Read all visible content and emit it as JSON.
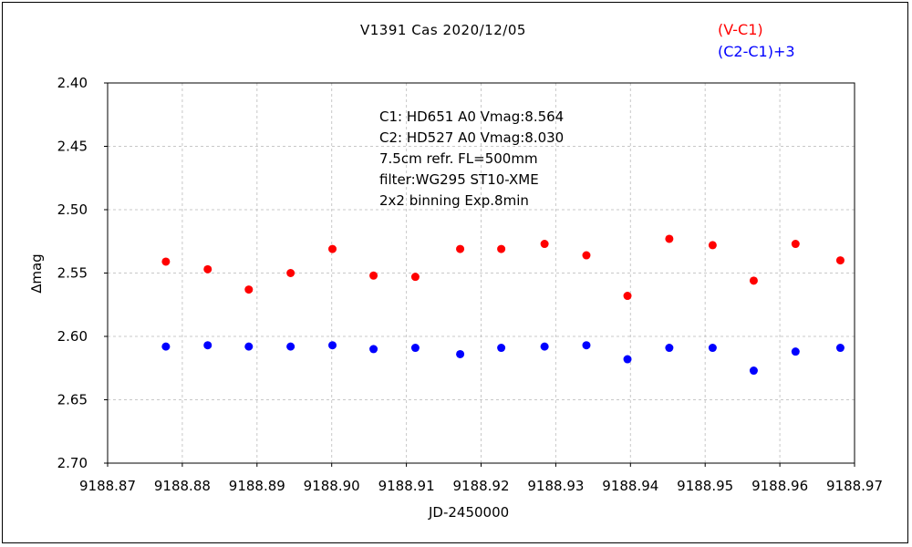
{
  "chart_data": {
    "type": "scatter",
    "title": "V1391 Cas   2020/12/05",
    "xlabel": "JD-2450000",
    "ylabel": "∆mag",
    "xlim": [
      9188.87,
      9188.97
    ],
    "ylim": [
      2.4,
      2.7
    ],
    "y_inverted": true,
    "grid": true,
    "legend_placement": "top-right",
    "x_ticks": [
      "9188.87",
      "9188.88",
      "9188.89",
      "9188.90",
      "9188.91",
      "9188.92",
      "9188.93",
      "9188.94",
      "9188.95",
      "9188.96",
      "9188.97"
    ],
    "y_ticks": [
      "2.40",
      "2.45",
      "2.50",
      "2.55",
      "2.60",
      "2.65",
      "2.70"
    ],
    "annotations": [
      "C1: HD651 A0  Vmag:8.564",
      "C2: HD527 A0  Vmag:8.030",
      "7.5cm refr. FL=500mm",
      "filter:WG295  ST10-XME",
      "2x2 binning  Exp.8min"
    ],
    "series": [
      {
        "name": "(V-C1)",
        "color": "#ff0000",
        "x": [
          9188.8778,
          9188.8834,
          9188.8889,
          9188.8945,
          9188.9001,
          9188.9056,
          9188.9112,
          9188.9172,
          9188.9227,
          9188.9285,
          9188.9341,
          9188.9396,
          9188.9452,
          9188.951,
          9188.9565,
          9188.9621,
          9188.9681
        ],
        "y": [
          2.541,
          2.547,
          2.563,
          2.55,
          2.531,
          2.552,
          2.553,
          2.531,
          2.531,
          2.527,
          2.536,
          2.568,
          2.523,
          2.528,
          2.556,
          2.527,
          2.54
        ]
      },
      {
        "name": "(C2-C1)+3",
        "color": "#0000ff",
        "x": [
          9188.8778,
          9188.8834,
          9188.8889,
          9188.8945,
          9188.9001,
          9188.9056,
          9188.9112,
          9188.9172,
          9188.9227,
          9188.9285,
          9188.9341,
          9188.9396,
          9188.9452,
          9188.951,
          9188.9565,
          9188.9621,
          9188.9681
        ],
        "y": [
          2.608,
          2.607,
          2.608,
          2.608,
          2.607,
          2.61,
          2.609,
          2.614,
          2.609,
          2.608,
          2.607,
          2.618,
          2.609,
          2.609,
          2.627,
          2.612,
          2.609
        ]
      }
    ]
  }
}
